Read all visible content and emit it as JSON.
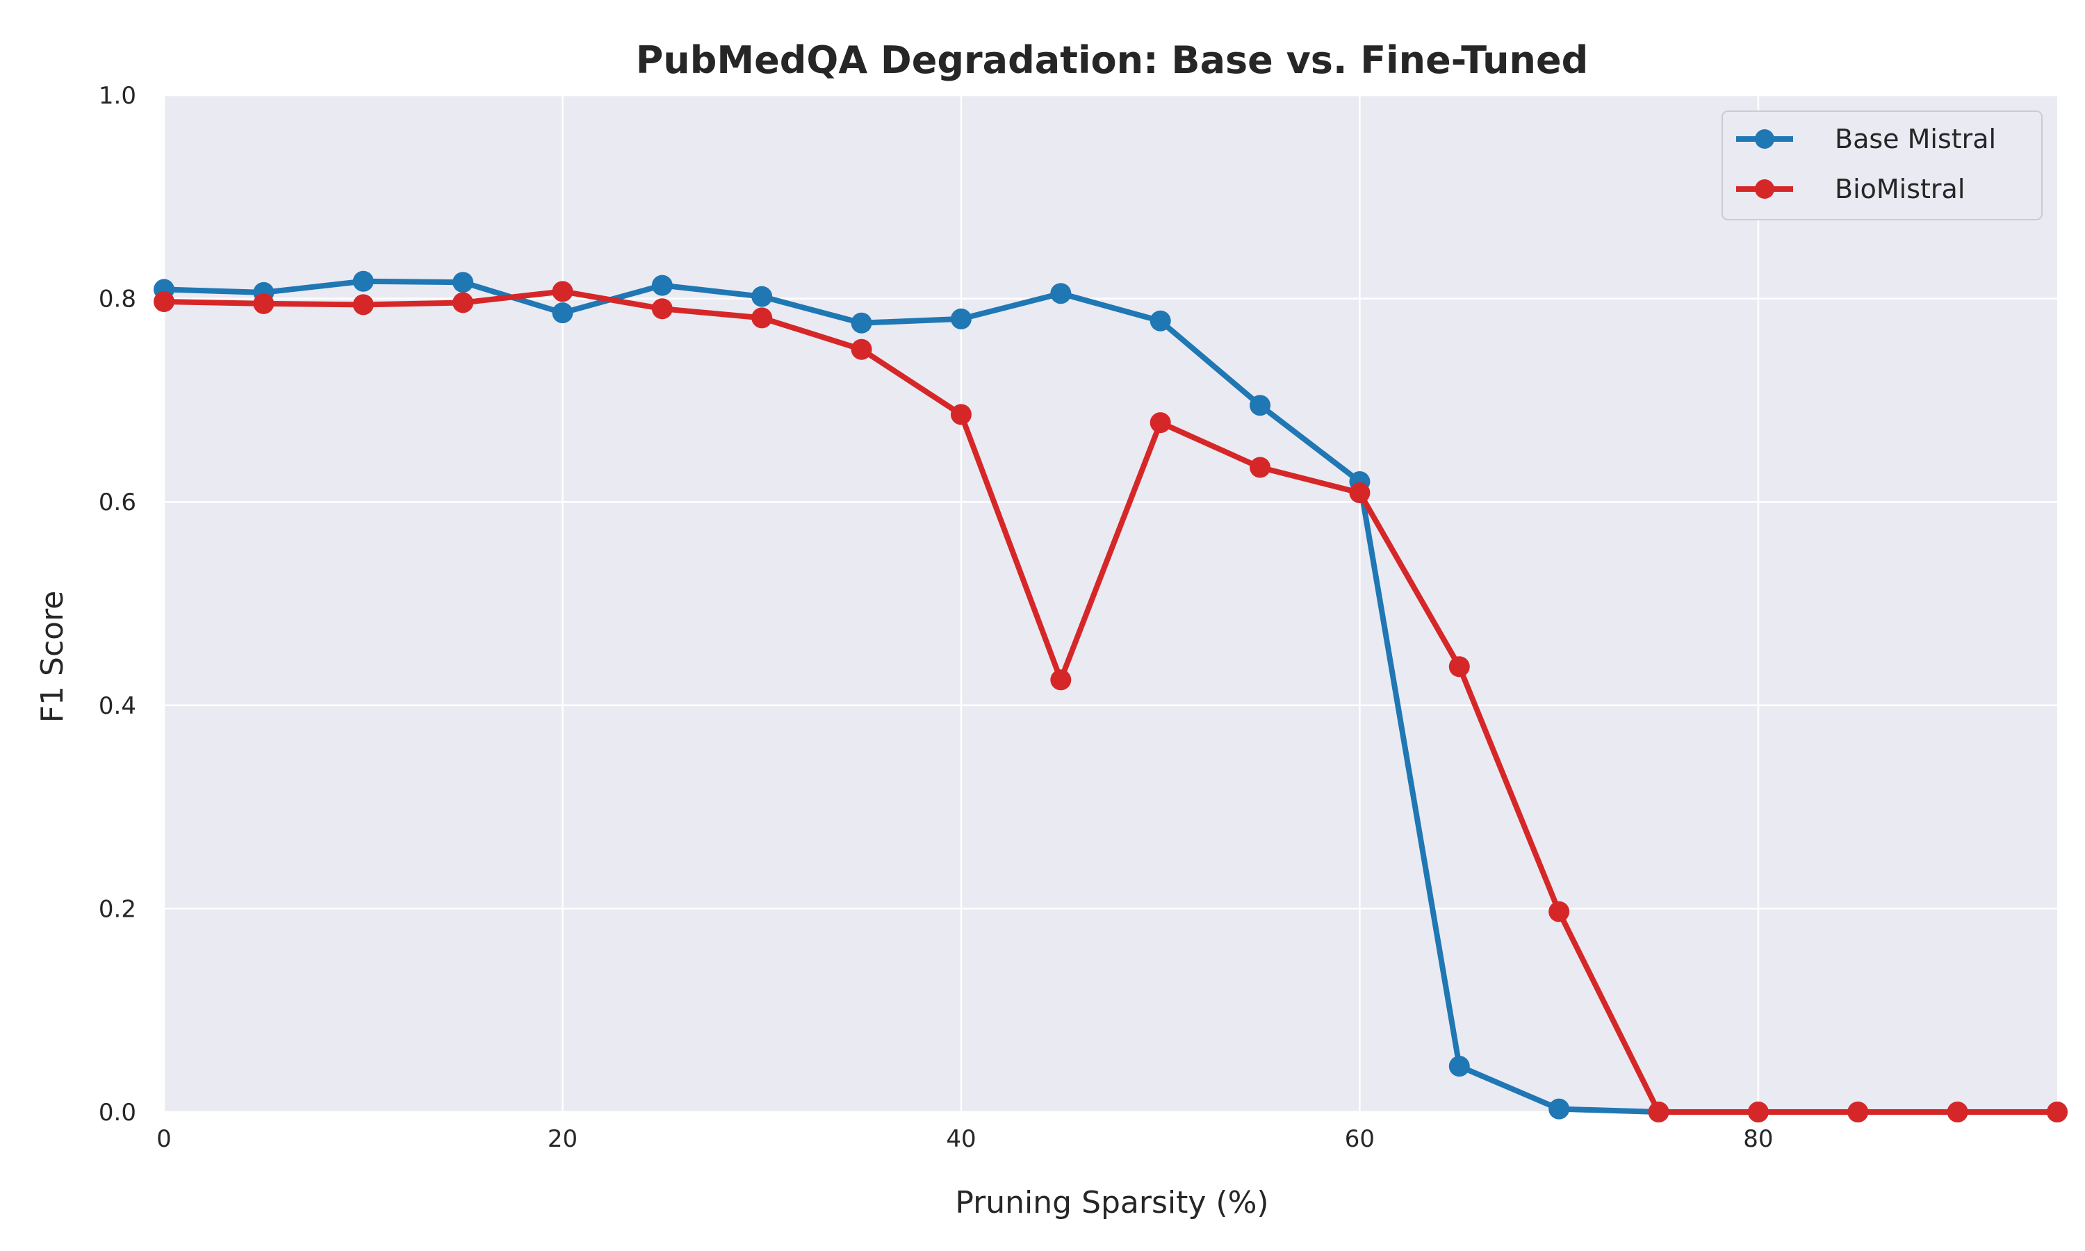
{
  "chart_data": {
    "type": "line",
    "title": "PubMedQA Degradation: Base vs. Fine-Tuned",
    "xlabel": "Pruning Sparsity (%)",
    "ylabel": "F1 Score",
    "xlim": [
      0,
      95
    ],
    "ylim": [
      0,
      1.0
    ],
    "xticks": [
      0,
      20,
      40,
      60,
      80
    ],
    "xtick_labels": [
      "0",
      "20",
      "40",
      "60",
      "80"
    ],
    "yticks": [
      0,
      0.2,
      0.4,
      0.6,
      0.8,
      1.0
    ],
    "ytick_labels": [
      "0.0",
      "0.2",
      "0.4",
      "0.6",
      "0.8",
      "1.0"
    ],
    "grid": true,
    "legend_position": "top-right",
    "x": [
      0,
      5,
      10,
      15,
      20,
      25,
      30,
      35,
      40,
      45,
      50,
      55,
      60,
      65,
      70,
      75,
      80,
      85,
      90,
      95
    ],
    "series": [
      {
        "name": "Base Mistral",
        "color": "#1f77b4",
        "values": [
          0.809,
          0.806,
          0.817,
          0.816,
          0.786,
          0.813,
          0.802,
          0.776,
          0.78,
          0.805,
          0.778,
          0.695,
          0.62,
          0.045,
          0.003,
          0.0,
          0.0,
          0.0,
          0.0,
          0.0
        ]
      },
      {
        "name": "BioMistral",
        "color": "#d62728",
        "values": [
          0.797,
          0.795,
          0.794,
          0.796,
          0.807,
          0.79,
          0.781,
          0.75,
          0.686,
          0.425,
          0.678,
          0.634,
          0.609,
          0.438,
          0.197,
          0.0,
          0.0,
          0.0,
          0.0,
          0.0
        ]
      }
    ],
    "colors": {
      "plot_background": "#eaeaf2",
      "grid": "#ffffff",
      "text": "#262626"
    }
  }
}
